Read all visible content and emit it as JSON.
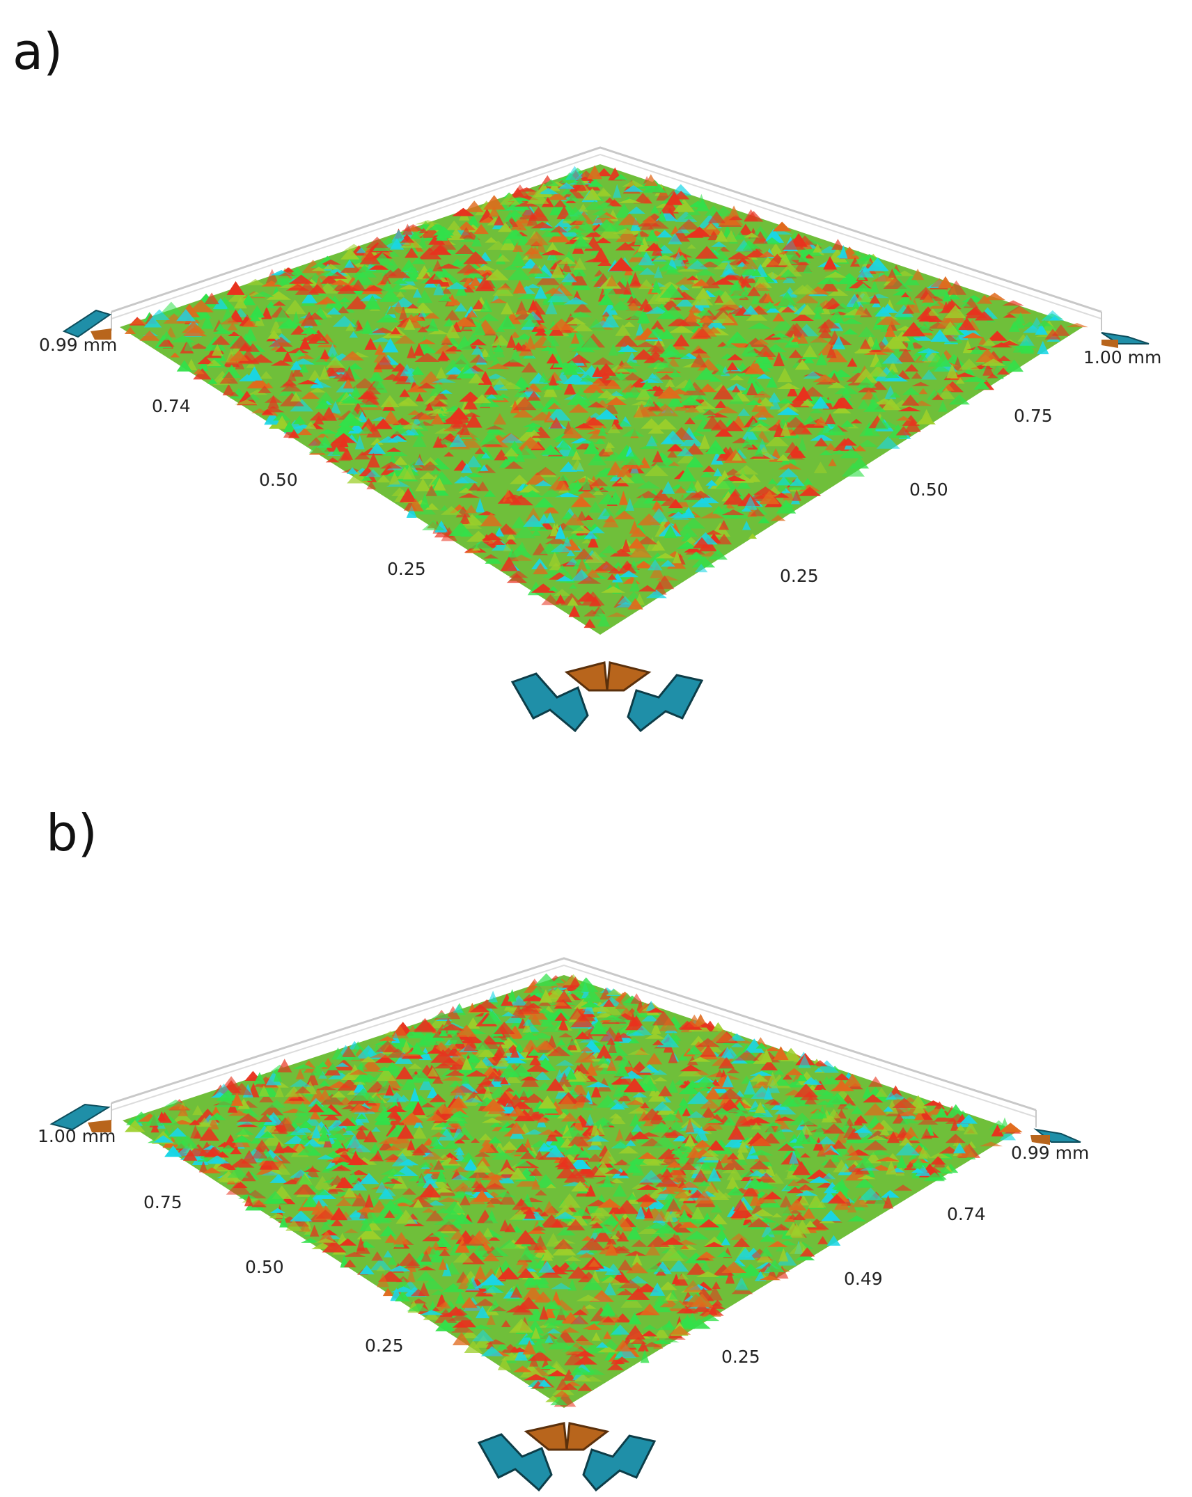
{
  "panels": [
    {
      "id": "a",
      "label": "a)",
      "left_axis": {
        "max_label": "0.99 mm",
        "ticks": [
          "0.74",
          "0.50",
          "0.25"
        ]
      },
      "right_axis": {
        "max_label": "1.00 mm",
        "ticks": [
          "0.75",
          "0.50",
          "0.25"
        ]
      }
    },
    {
      "id": "b",
      "label": "b)",
      "left_axis": {
        "max_label": "1.00 mm",
        "ticks": [
          "0.75",
          "0.50",
          "0.25"
        ]
      },
      "right_axis": {
        "max_label": "0.99 mm",
        "ticks": [
          "0.74",
          "0.49",
          "0.25"
        ]
      }
    }
  ],
  "colors": {
    "surface_low": "#19d6e6",
    "surface_mid": "#32e04a",
    "surface_high": "#e8321e",
    "nav_arrow_teal": "#1f8fa8",
    "nav_arrow_orange": "#b8651c",
    "box_frame": "#c8c8c8"
  },
  "icons": [
    "rotate-left-icon",
    "tilt-up-icon",
    "rotate-right-icon"
  ]
}
